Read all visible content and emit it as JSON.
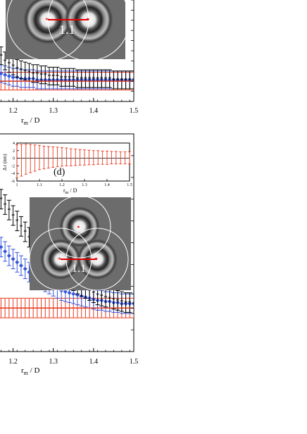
{
  "panels": [
    {
      "id": "top",
      "xlabel_main": "r",
      "xlabel_sub": "m",
      "xlabel_rest": " / D",
      "inset_image": {
        "label": "1.1",
        "disks": 2
      }
    },
    {
      "id": "bottom",
      "xlabel_main": "r",
      "xlabel_sub": "m",
      "xlabel_rest": " / D",
      "inset_plot": {
        "panel_label": "(d)",
        "ylabel": "Δ r (nm)",
        "xlabel_main": "r",
        "xlabel_sub": "m",
        "xlabel_rest": " / D"
      },
      "inset_image": {
        "label": "1.1",
        "disks": 3
      }
    }
  ],
  "chart_data": [
    {
      "type": "scatter",
      "panel": "top",
      "title": "",
      "xlabel": "r_m / D",
      "ylabel": "",
      "xlim": [
        1.15,
        1.5
      ],
      "xticks": [
        1.2,
        1.3,
        1.4,
        1.5
      ],
      "tick_labels": [
        "1.2",
        "1.3",
        "1.4",
        "1.5"
      ],
      "grid": false,
      "series": [
        {
          "marker": "black-star",
          "x": [
            1.15,
            1.16,
            1.17,
            1.18,
            1.19,
            1.2,
            1.21,
            1.22,
            1.23,
            1.24,
            1.25,
            1.26,
            1.27,
            1.28,
            1.29,
            1.3,
            1.31,
            1.32,
            1.33,
            1.34,
            1.35,
            1.36,
            1.37,
            1.38,
            1.39,
            1.4,
            1.41,
            1.42,
            1.43,
            1.44,
            1.45,
            1.46,
            1.47,
            1.48,
            1.49,
            1.5
          ],
          "y": [
            0.95,
            0.9,
            0.86,
            0.82,
            0.8,
            0.78,
            0.76,
            0.75,
            0.74,
            0.73,
            0.72,
            0.72,
            0.71,
            0.71,
            0.7,
            0.7,
            0.7,
            0.69,
            0.69,
            0.69,
            0.69,
            0.68,
            0.68,
            0.68,
            0.68,
            0.68,
            0.68,
            0.68,
            0.68,
            0.68,
            0.67,
            0.67,
            0.67,
            0.67,
            0.67,
            0.67
          ]
        },
        {
          "marker": "blue-diamond",
          "x": [
            1.15,
            1.16,
            1.17,
            1.18,
            1.19,
            1.2,
            1.21,
            1.22,
            1.23,
            1.24,
            1.25,
            1.26,
            1.27,
            1.28,
            1.29,
            1.3,
            1.31,
            1.32,
            1.33,
            1.34,
            1.35,
            1.36,
            1.37,
            1.38,
            1.39,
            1.4,
            1.41,
            1.42,
            1.43,
            1.44,
            1.45,
            1.46,
            1.47,
            1.48,
            1.49,
            1.5
          ],
          "y": [
            0.78,
            0.74,
            0.72,
            0.71,
            0.7,
            0.69,
            0.69,
            0.68,
            0.68,
            0.68,
            0.68,
            0.67,
            0.67,
            0.67,
            0.67,
            0.67,
            0.67,
            0.67,
            0.67,
            0.67,
            0.67,
            0.67,
            0.67,
            0.67,
            0.67,
            0.67,
            0.67,
            0.67,
            0.67,
            0.67,
            0.67,
            0.67,
            0.67,
            0.67,
            0.67,
            0.67
          ]
        },
        {
          "marker": "red-dash",
          "x": [
            1.15,
            1.16,
            1.17,
            1.18,
            1.19,
            1.2,
            1.21,
            1.22,
            1.23,
            1.24,
            1.25,
            1.26,
            1.27,
            1.28,
            1.29,
            1.3,
            1.31,
            1.32,
            1.33,
            1.34,
            1.35,
            1.36,
            1.37,
            1.38,
            1.39,
            1.4,
            1.41,
            1.42,
            1.43,
            1.44,
            1.45,
            1.46,
            1.47,
            1.48,
            1.49,
            1.5
          ],
          "y": [
            0.66,
            0.66,
            0.66,
            0.66,
            0.66,
            0.66,
            0.66,
            0.66,
            0.66,
            0.66,
            0.66,
            0.66,
            0.66,
            0.66,
            0.66,
            0.66,
            0.66,
            0.66,
            0.66,
            0.66,
            0.66,
            0.66,
            0.66,
            0.66,
            0.66,
            0.66,
            0.66,
            0.66,
            0.66,
            0.66,
            0.66,
            0.66,
            0.66,
            0.66,
            0.66,
            0.66
          ]
        }
      ],
      "error": 0.07,
      "ylim": [
        0.5,
        1.3
      ]
    },
    {
      "type": "scatter",
      "panel": "bottom",
      "title": "",
      "xlabel": "r_m / D",
      "ylabel": "",
      "xlim": [
        1.15,
        1.5
      ],
      "xticks": [
        1.2,
        1.3,
        1.4,
        1.5
      ],
      "tick_labels": [
        "1.2",
        "1.3",
        "1.4",
        "1.5"
      ],
      "grid": false,
      "series": [
        {
          "marker": "black-star",
          "x": [
            1.15,
            1.16,
            1.17,
            1.18,
            1.19,
            1.2,
            1.21,
            1.22,
            1.23,
            1.24,
            1.25,
            1.26,
            1.27,
            1.28,
            1.29,
            1.3,
            1.31,
            1.32,
            1.33,
            1.34,
            1.35,
            1.36,
            1.37,
            1.38,
            1.39,
            1.4,
            1.41,
            1.42,
            1.43,
            1.44,
            1.45,
            1.46,
            1.47,
            1.48,
            1.49,
            1.5
          ],
          "y": [
            2.1,
            2.05,
            2.0,
            1.95,
            1.9,
            1.85,
            1.8,
            1.75,
            1.7,
            1.65,
            1.6,
            1.56,
            1.52,
            1.48,
            1.44,
            1.4,
            1.37,
            1.34,
            1.31,
            1.28,
            1.25,
            1.22,
            1.2,
            1.18,
            1.16,
            1.14,
            1.12,
            1.11,
            1.1,
            1.09,
            1.08,
            1.07,
            1.06,
            1.05,
            1.05,
            1.04
          ]
        },
        {
          "marker": "blue-diamond",
          "x": [
            1.15,
            1.16,
            1.17,
            1.18,
            1.19,
            1.2,
            1.21,
            1.22,
            1.23,
            1.24,
            1.25,
            1.26,
            1.27,
            1.28,
            1.29,
            1.3,
            1.31,
            1.32,
            1.33,
            1.34,
            1.35,
            1.36,
            1.37,
            1.38,
            1.39,
            1.4,
            1.41,
            1.42,
            1.43,
            1.44,
            1.45,
            1.46,
            1.47,
            1.48,
            1.49,
            1.5
          ],
          "y": [
            1.65,
            1.6,
            1.56,
            1.52,
            1.48,
            1.45,
            1.42,
            1.39,
            1.36,
            1.33,
            1.3,
            1.28,
            1.26,
            1.24,
            1.22,
            1.2,
            1.18,
            1.16,
            1.15,
            1.14,
            1.13,
            1.12,
            1.11,
            1.1,
            1.09,
            1.08,
            1.07,
            1.07,
            1.06,
            1.06,
            1.05,
            1.05,
            1.04,
            1.04,
            1.04,
            1.04
          ]
        },
        {
          "marker": "red-dash",
          "x": [
            1.15,
            1.16,
            1.17,
            1.18,
            1.19,
            1.2,
            1.21,
            1.22,
            1.23,
            1.24,
            1.25,
            1.26,
            1.27,
            1.28,
            1.29,
            1.3,
            1.31,
            1.32,
            1.33,
            1.34,
            1.35,
            1.36,
            1.37,
            1.38,
            1.39,
            1.4,
            1.41,
            1.42,
            1.43,
            1.44,
            1.45,
            1.46,
            1.47,
            1.48,
            1.49,
            1.5
          ],
          "y": [
            1.0,
            1.0,
            1.0,
            1.0,
            1.0,
            1.0,
            1.0,
            1.0,
            1.0,
            1.0,
            1.0,
            1.0,
            1.0,
            1.0,
            1.0,
            1.0,
            1.0,
            1.0,
            1.0,
            1.0,
            1.0,
            1.0,
            1.0,
            1.0,
            1.0,
            1.0,
            1.0,
            1.0,
            1.0,
            1.0,
            1.0,
            1.0,
            1.0,
            1.0,
            1.0,
            1.0
          ]
        }
      ],
      "error": 0.09,
      "ylim": [
        0.6,
        2.6
      ]
    },
    {
      "type": "scatter",
      "panel": "bottom-inset",
      "title": "(d)",
      "xlabel": "r_m / D",
      "ylabel": "Δ r (nm)",
      "xlim": [
        1.0,
        1.5
      ],
      "ylim": [
        -6,
        4
      ],
      "xticks": [
        1.0,
        1.1,
        1.2,
        1.3,
        1.4,
        1.5
      ],
      "tick_labels": [
        "1",
        "1.1",
        "1.2",
        "1.3",
        "1.4",
        "1.5"
      ],
      "yticks": [
        -6,
        -4,
        -2,
        0,
        2,
        4
      ],
      "ytick_labels": [
        "-6",
        "-4",
        "-2",
        "0",
        "2",
        "4"
      ],
      "series": [
        {
          "marker": "red-errorbar",
          "x": [
            1.0,
            1.02,
            1.04,
            1.06,
            1.08,
            1.1,
            1.12,
            1.14,
            1.16,
            1.18,
            1.2,
            1.22,
            1.24,
            1.26,
            1.28,
            1.3,
            1.32,
            1.34,
            1.36,
            1.38,
            1.4,
            1.42,
            1.44,
            1.46,
            1.48,
            1.5
          ],
          "y": [
            0.4,
            0.3,
            0.3,
            0.2,
            0.2,
            0.2,
            0.1,
            0.1,
            0.1,
            0.1,
            0.1,
            0.1,
            0.0,
            0.0,
            0.0,
            0.0,
            0.0,
            0.0,
            0.0,
            0.0,
            0.0,
            0.0,
            0.0,
            0.0,
            0.0,
            0.0
          ],
          "err_low": [
            5.6,
            5.0,
            4.5,
            4.0,
            3.6,
            3.2,
            2.9,
            2.7,
            2.5,
            2.3,
            2.2,
            2.1,
            2.0,
            1.9,
            1.8,
            1.8,
            1.7,
            1.7,
            1.6,
            1.6,
            1.6,
            1.5,
            1.5,
            1.5,
            1.5,
            1.5
          ],
          "err_high": [
            3.2,
            3.3,
            3.4,
            3.4,
            3.3,
            3.2,
            3.1,
            3.0,
            2.9,
            2.8,
            2.7,
            2.6,
            2.5,
            2.4,
            2.3,
            2.2,
            2.1,
            2.0,
            2.0,
            1.9,
            1.9,
            1.8,
            1.8,
            1.7,
            1.7,
            1.7
          ]
        }
      ]
    }
  ]
}
